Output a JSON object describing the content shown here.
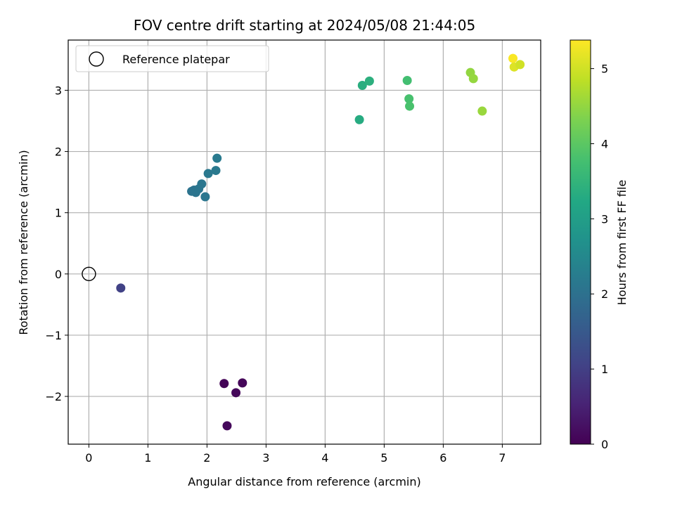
{
  "chart_data": {
    "type": "scatter",
    "title": "FOV centre drift starting at 2024/05/08 21:44:05",
    "xlabel": "Angular distance from reference (arcmin)",
    "ylabel": "Rotation from reference (arcmin)",
    "xlim": [
      -0.35,
      7.65
    ],
    "ylim": [
      -2.78,
      3.82
    ],
    "xticks": [
      0,
      1,
      2,
      3,
      4,
      5,
      6,
      7
    ],
    "yticks": [
      -2,
      -1,
      0,
      1,
      2,
      3
    ],
    "ytick_labels": [
      "−2",
      "−1",
      "0",
      "1",
      "2",
      "3"
    ],
    "grid": true,
    "legend": {
      "placement": "top-left",
      "entries": [
        "Reference platepar"
      ]
    },
    "reference_point": {
      "x": 0,
      "y": 0
    },
    "colorbar": {
      "label": "Hours from first FF file",
      "colormap": "viridis",
      "range": [
        0,
        5.38
      ],
      "ticks": [
        0,
        1,
        2,
        3,
        4,
        5
      ]
    },
    "points": [
      {
        "x": 2.29,
        "y": -1.79,
        "c": 0.05
      },
      {
        "x": 2.6,
        "y": -1.78,
        "c": 0.08
      },
      {
        "x": 2.49,
        "y": -1.94,
        "c": 0.1
      },
      {
        "x": 2.34,
        "y": -2.48,
        "c": 0.12
      },
      {
        "x": 0.54,
        "y": -0.23,
        "c": 1.05
      },
      {
        "x": 1.74,
        "y": 1.35,
        "c": 2.05
      },
      {
        "x": 1.78,
        "y": 1.37,
        "c": 2.05
      },
      {
        "x": 1.81,
        "y": 1.33,
        "c": 2.07
      },
      {
        "x": 1.86,
        "y": 1.39,
        "c": 2.08
      },
      {
        "x": 1.91,
        "y": 1.47,
        "c": 2.1
      },
      {
        "x": 1.97,
        "y": 1.26,
        "c": 2.1
      },
      {
        "x": 2.02,
        "y": 1.64,
        "c": 2.15
      },
      {
        "x": 2.15,
        "y": 1.69,
        "c": 2.18
      },
      {
        "x": 2.17,
        "y": 1.89,
        "c": 2.2
      },
      {
        "x": 4.58,
        "y": 2.52,
        "c": 3.3
      },
      {
        "x": 4.63,
        "y": 3.08,
        "c": 3.35
      },
      {
        "x": 4.75,
        "y": 3.15,
        "c": 3.4
      },
      {
        "x": 5.39,
        "y": 3.16,
        "c": 3.75
      },
      {
        "x": 5.42,
        "y": 2.86,
        "c": 3.8
      },
      {
        "x": 5.43,
        "y": 2.74,
        "c": 3.82
      },
      {
        "x": 6.46,
        "y": 3.29,
        "c": 4.5
      },
      {
        "x": 6.51,
        "y": 3.19,
        "c": 4.52
      },
      {
        "x": 6.66,
        "y": 2.66,
        "c": 4.55
      },
      {
        "x": 7.18,
        "y": 3.52,
        "c": 5.35
      },
      {
        "x": 7.2,
        "y": 3.38,
        "c": 5.1
      },
      {
        "x": 7.3,
        "y": 3.42,
        "c": 5.0
      }
    ]
  }
}
